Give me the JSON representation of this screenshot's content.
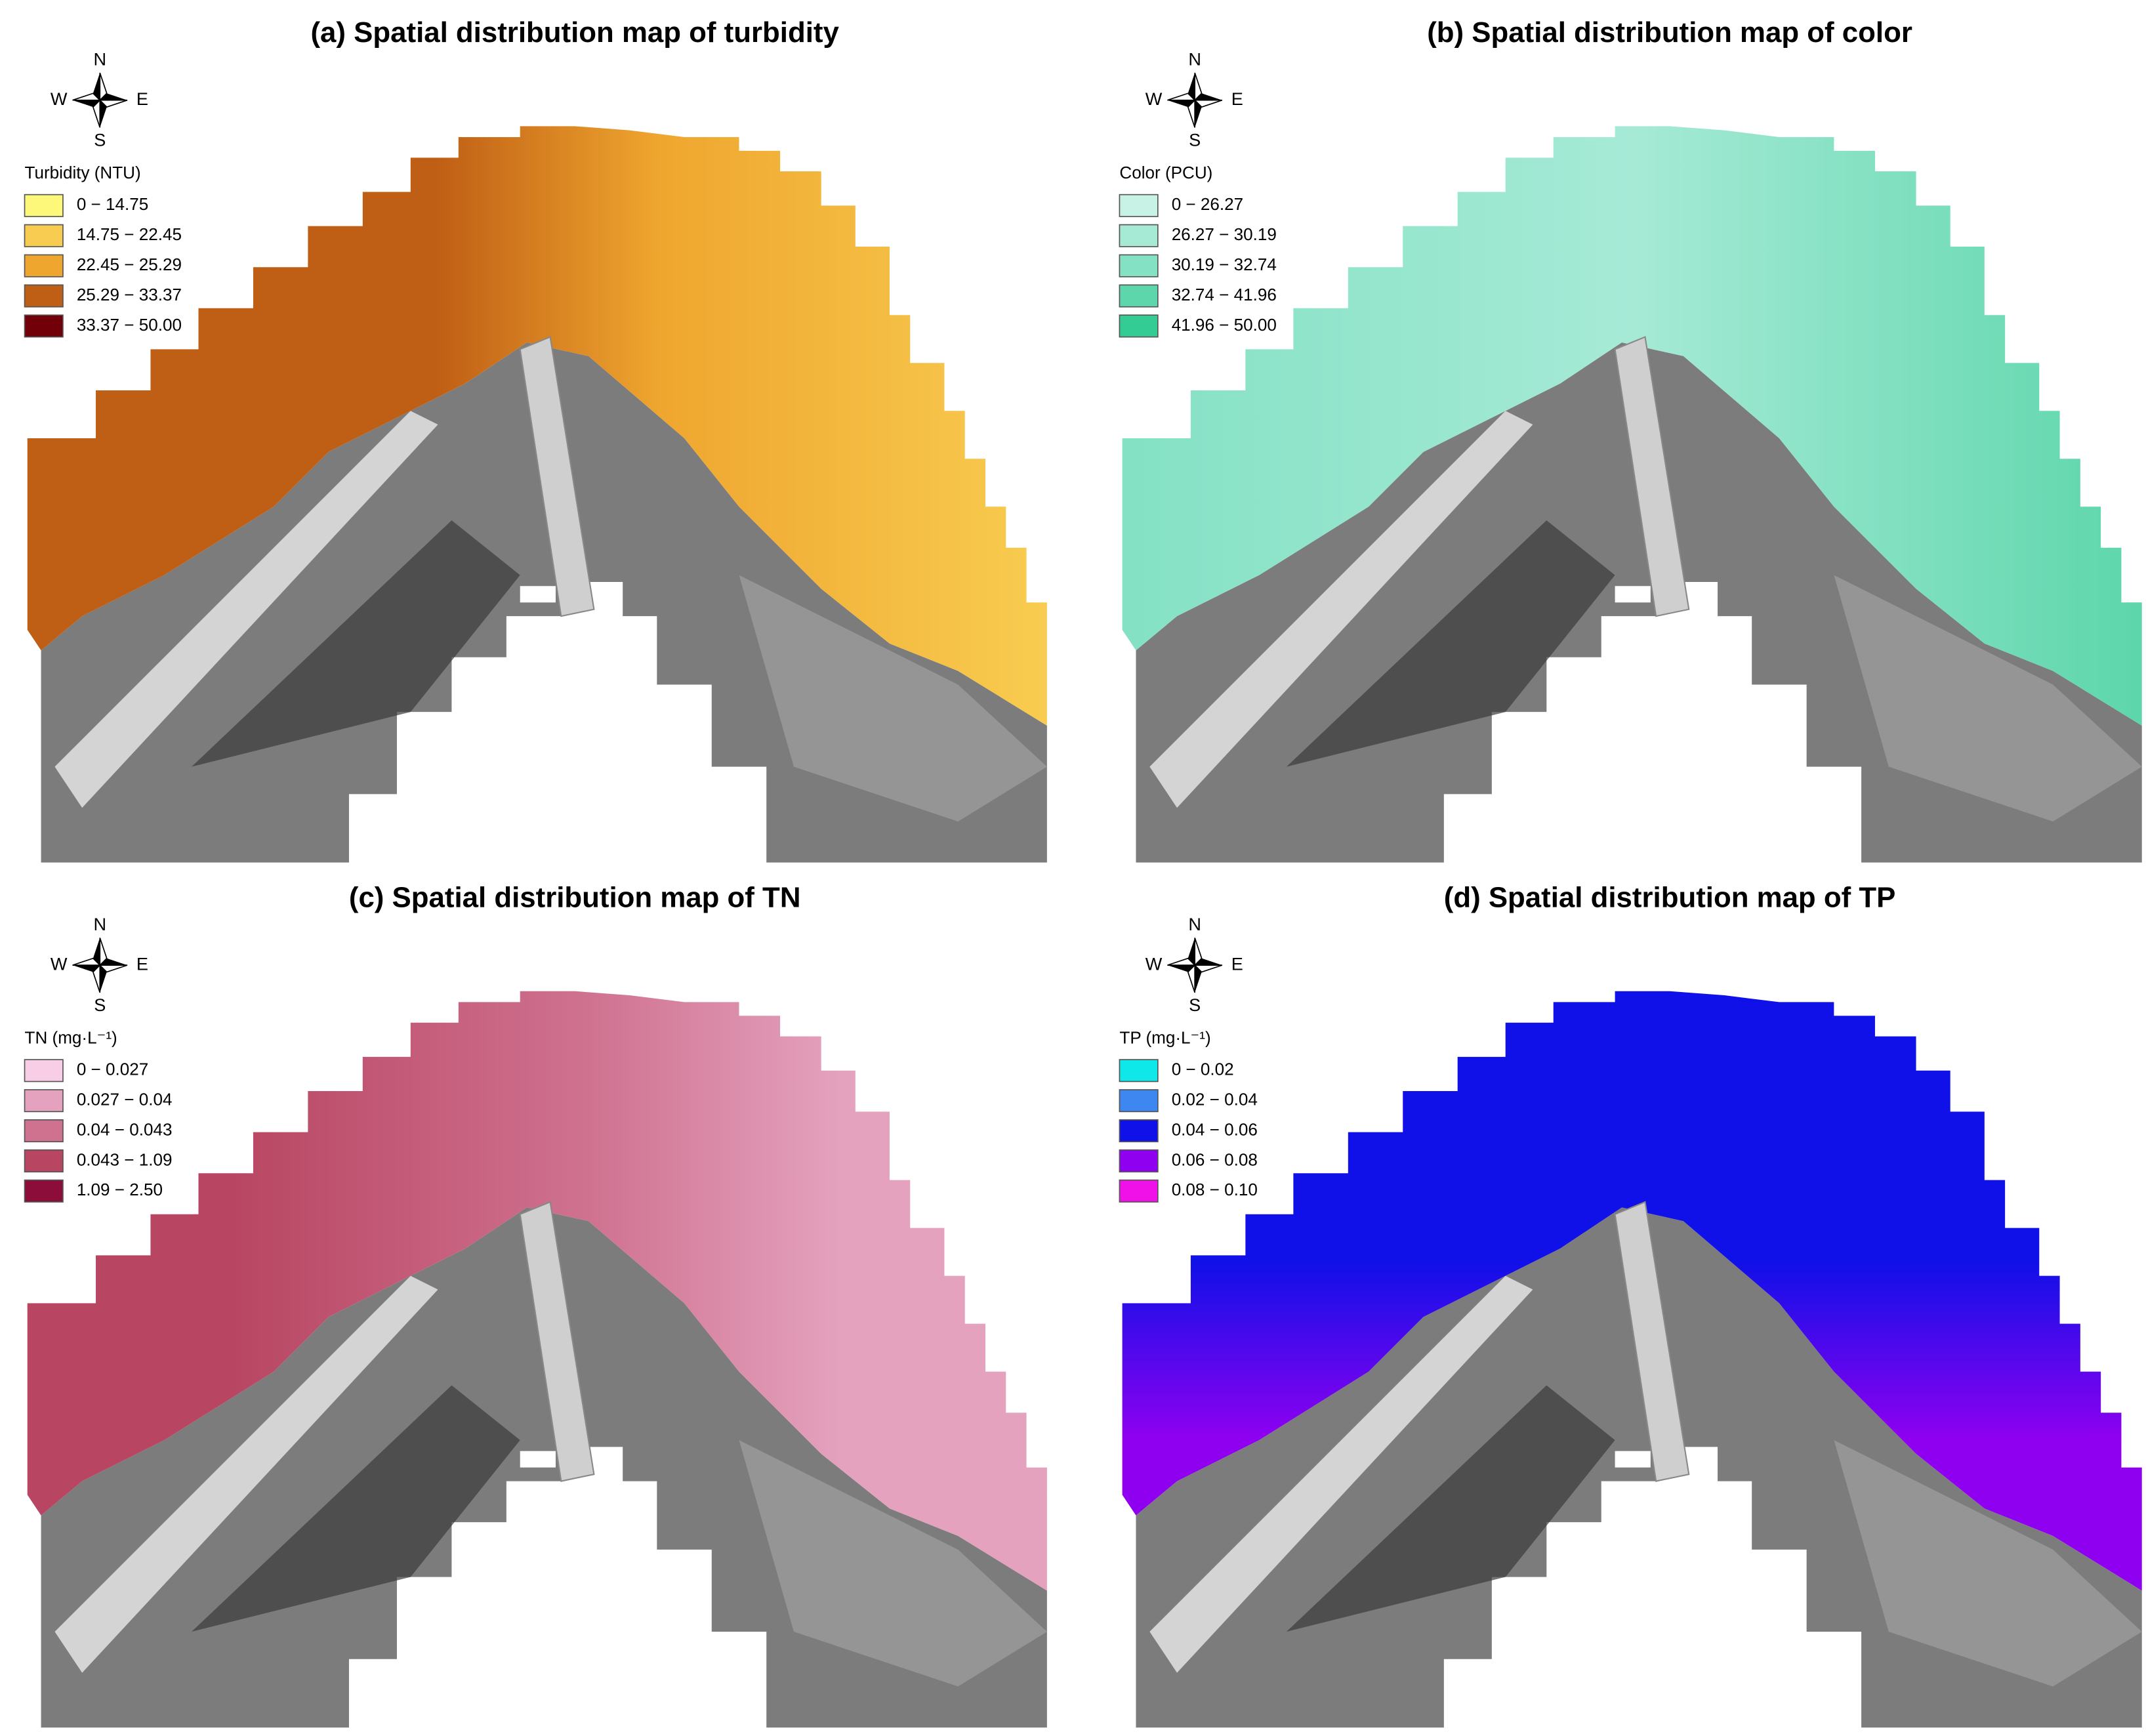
{
  "panels": [
    {
      "title": "(a) Spatial distribution map of turbidity",
      "compass": {
        "n": "N",
        "s": "S",
        "w": "W",
        "e": "E"
      },
      "legend": {
        "title": "Turbidity (NTU)",
        "items": [
          {
            "label": "0 − 14.75",
            "color": "#fdf87a"
          },
          {
            "label": "14.75 − 22.45",
            "color": "#f8cc50"
          },
          {
            "label": "22.45 − 25.29",
            "color": "#efa62f"
          },
          {
            "label": "25.29 − 33.37",
            "color": "#bf5e15"
          },
          {
            "label": "33.37 − 50.00",
            "color": "#720008"
          }
        ]
      }
    },
    {
      "title": "(b) Spatial distribution map of color",
      "compass": {
        "n": "N",
        "s": "S",
        "w": "W",
        "e": "E"
      },
      "legend": {
        "title": "Color (PCU)",
        "items": [
          {
            "label": "0 − 26.27",
            "color": "#c8f2e6"
          },
          {
            "label": "26.27 − 30.19",
            "color": "#a6ead6"
          },
          {
            "label": "30.19 − 32.74",
            "color": "#84e1c4"
          },
          {
            "label": "32.74 − 41.96",
            "color": "#5dd6ab"
          },
          {
            "label": "41.96 − 50.00",
            "color": "#34cc95"
          }
        ]
      }
    },
    {
      "title": "(c) Spatial distribution map of TN",
      "compass": {
        "n": "N",
        "s": "S",
        "w": "W",
        "e": "E"
      },
      "legend": {
        "title": "TN (mg·L⁻¹)",
        "items": [
          {
            "label": "0 − 0.027",
            "color": "#f8cde6"
          },
          {
            "label": "0.027 − 0.04",
            "color": "#e4a2be"
          },
          {
            "label": "0.04 − 0.043",
            "color": "#cf7290"
          },
          {
            "label": "0.043 − 1.09",
            "color": "#b84662"
          },
          {
            "label": "1.09 − 2.50",
            "color": "#8c0c3a"
          }
        ]
      }
    },
    {
      "title": "(d) Spatial distribution map of TP",
      "compass": {
        "n": "N",
        "s": "S",
        "w": "W",
        "e": "E"
      },
      "legend": {
        "title": "TP (mg·L⁻¹)",
        "items": [
          {
            "label": "0 − 0.02",
            "color": "#0ee8e8"
          },
          {
            "label": "0.02 − 0.04",
            "color": "#3e86f0"
          },
          {
            "label": "0.04 − 0.06",
            "color": "#1010e8"
          },
          {
            "label": "0.06 − 0.08",
            "color": "#9000f0"
          },
          {
            "label": "0.08 − 0.10",
            "color": "#f010e8"
          }
        ]
      }
    }
  ]
}
